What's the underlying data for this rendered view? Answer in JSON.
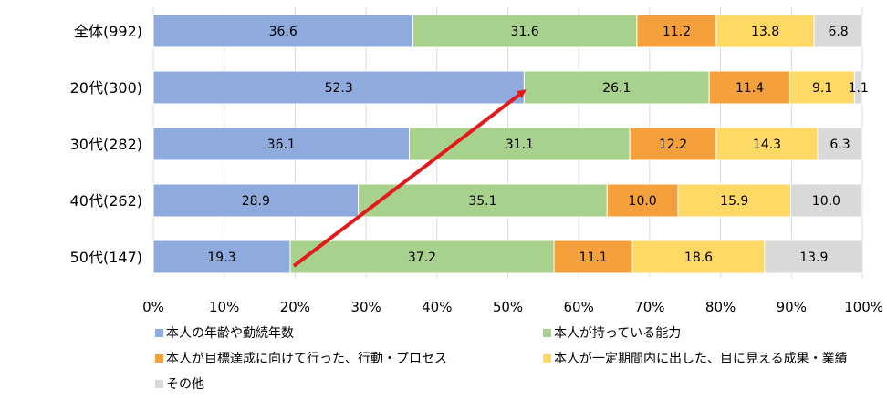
{
  "chart_data": {
    "type": "bar",
    "orientation": "horizontal",
    "stacked": "percent",
    "categories": [
      "全体(992)",
      "20代(300)",
      "30代(282)",
      "40代(262)",
      "50代(147)"
    ],
    "series": [
      {
        "name": "本人の年齢や勤続年数",
        "color": "#8FAADC",
        "values": [
          36.6,
          52.3,
          36.1,
          28.9,
          19.3
        ]
      },
      {
        "name": "本人が持っている能力",
        "color": "#A9D18E",
        "values": [
          31.6,
          26.1,
          31.1,
          35.1,
          37.2
        ]
      },
      {
        "name": "本人が目標達成に向けて行った、行動・プロセス",
        "color": "#F4A03C",
        "values": [
          11.2,
          11.4,
          12.2,
          10.0,
          11.1
        ]
      },
      {
        "name": "本人が一定期間内に出した、目に見える成果・業績",
        "color": "#FFD966",
        "values": [
          13.8,
          9.1,
          14.3,
          15.9,
          18.6
        ]
      },
      {
        "name": "その他",
        "color": "#D9D9D9",
        "values": [
          6.8,
          1.1,
          6.3,
          10.0,
          13.9
        ]
      }
    ],
    "data_labels": [
      [
        "36.6",
        "31.6",
        "11.2",
        "13.8",
        "6.8"
      ],
      [
        "52.3",
        "26.1",
        "11.4",
        "9.1",
        "1.1"
      ],
      [
        "36.1",
        "31.1",
        "12.2",
        "14.3",
        "6.3"
      ],
      [
        "28.9",
        "35.1",
        "10.0",
        "15.9",
        "10.0"
      ],
      [
        "19.3",
        "37.2",
        "11.1",
        "18.6",
        "13.9"
      ]
    ],
    "xticks": [
      "0%",
      "10%",
      "20%",
      "30%",
      "40%",
      "50%",
      "60%",
      "70%",
      "80%",
      "90%",
      "100%"
    ],
    "xlim": [
      0,
      100
    ],
    "legend_position": "bottom",
    "annotation": {
      "type": "arrow",
      "color": "#E31A1C",
      "from": {
        "category": "50代(147)",
        "x": 19.3
      },
      "to": {
        "category": "20代(300)",
        "x": 52.3
      }
    }
  }
}
